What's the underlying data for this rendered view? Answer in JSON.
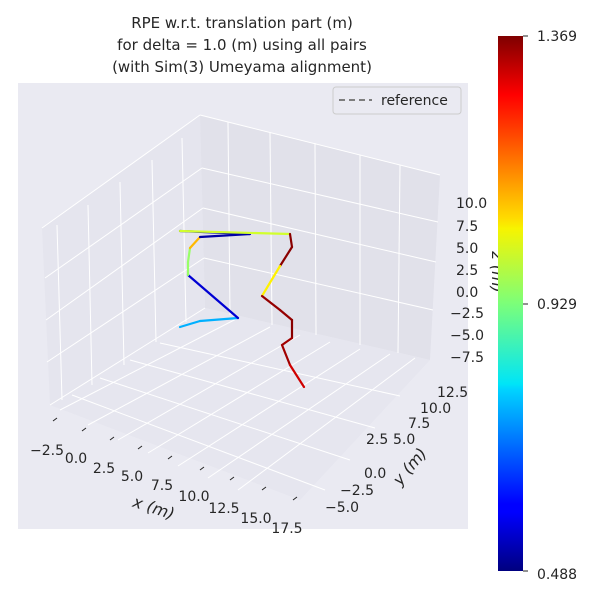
{
  "chart_data": {
    "type": "line3d",
    "title_lines": [
      "RPE w.r.t. translation part (m)",
      "for delta = 1.0 (m) using all pairs",
      "(with Sim(3) Umeyama alignment)"
    ],
    "xlabel": "x (m)",
    "ylabel": "y (m)",
    "zlabel": "z (m)",
    "xticks": [
      "−2.5",
      "0.0",
      "2.5",
      "5.0",
      "7.5",
      "10.0",
      "12.5",
      "15.0",
      "17.5"
    ],
    "yticks": [
      "−5.0",
      "−2.5",
      "0.0",
      "2.5",
      "5.0",
      "7.5",
      "10.0",
      "12.5"
    ],
    "zticks": [
      "−7.5",
      "−5.0",
      "−2.5",
      "0.0",
      "2.5",
      "5.0",
      "7.5",
      "10.0"
    ],
    "legend": {
      "entries": [
        "reference"
      ],
      "placement": "top-right",
      "line_style": "dashed",
      "color": "#6e6e6e"
    },
    "grid": true,
    "colorbar": {
      "colormap": "jet",
      "min": 0.488,
      "max": 1.369,
      "ticks": [
        "0.488",
        "0.929",
        "1.369"
      ]
    },
    "trajectory": {
      "segments": [
        {
          "rpe": 0.75
        },
        {
          "rpe": 0.56
        },
        {
          "rpe": 0.95
        },
        {
          "rpe": 1.1
        },
        {
          "rpe": 0.52
        },
        {
          "rpe": 1.0
        },
        {
          "rpe": 1.36
        },
        {
          "rpe": 1.05
        },
        {
          "rpe": 1.35
        },
        {
          "rpe": 1.36
        },
        {
          "rpe": 1.34
        },
        {
          "rpe": 1.3
        }
      ]
    }
  }
}
